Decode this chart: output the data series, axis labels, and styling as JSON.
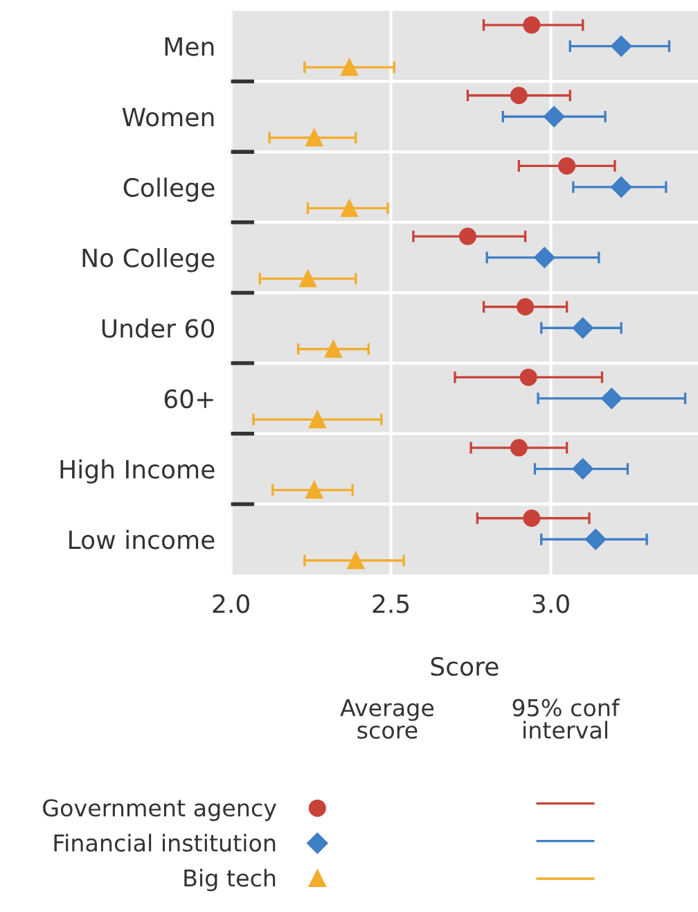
{
  "chart_data": {
    "type": "scatter",
    "orientation": "horizontal",
    "categories": [
      "Men",
      "Women",
      "College",
      "No College",
      "Under 60",
      "60+",
      "High Income",
      "Low income"
    ],
    "series": [
      {
        "name": "Government agency",
        "color": "#c8423a",
        "marker": "circle",
        "values": [
          2.94,
          2.9,
          3.05,
          2.74,
          2.92,
          2.93,
          2.9,
          2.94
        ],
        "errors": [
          [
            2.79,
            3.1
          ],
          [
            2.74,
            3.06
          ],
          [
            2.9,
            3.2
          ],
          [
            2.57,
            2.92
          ],
          [
            2.79,
            3.05
          ],
          [
            2.7,
            3.16
          ],
          [
            2.75,
            3.05
          ],
          [
            2.77,
            3.12
          ]
        ]
      },
      {
        "name": "Financial institution",
        "color": "#3f7fc6",
        "marker": "diamond",
        "values": [
          3.22,
          3.01,
          3.22,
          2.98,
          3.1,
          3.19,
          3.1,
          3.14
        ],
        "errors": [
          [
            3.06,
            3.37
          ],
          [
            2.85,
            3.17
          ],
          [
            3.07,
            3.36
          ],
          [
            2.8,
            3.15
          ],
          [
            2.97,
            3.22
          ],
          [
            2.96,
            3.42
          ],
          [
            2.95,
            3.24
          ],
          [
            2.97,
            3.3
          ]
        ]
      },
      {
        "name": "Big tech",
        "color": "#f2ad2c",
        "marker": "triangle",
        "values": [
          2.37,
          2.26,
          2.37,
          2.24,
          2.32,
          2.27,
          2.26,
          2.39
        ],
        "errors": [
          [
            2.23,
            2.51
          ],
          [
            2.12,
            2.39
          ],
          [
            2.24,
            2.49
          ],
          [
            2.09,
            2.39
          ],
          [
            2.21,
            2.43
          ],
          [
            2.07,
            2.47
          ],
          [
            2.13,
            2.38
          ],
          [
            2.23,
            2.54
          ]
        ]
      }
    ],
    "xlim": [
      2.0,
      3.46
    ],
    "xticks": [
      {
        "value": 2.0,
        "label": "2.0"
      },
      {
        "value": 2.5,
        "label": "2.5"
      },
      {
        "value": 3.0,
        "label": "3.0"
      }
    ],
    "xlabel": "Score",
    "grid": true,
    "legend": "bottom",
    "annotations": [
      "Average\nscore",
      "95% conf\ninterval"
    ]
  }
}
